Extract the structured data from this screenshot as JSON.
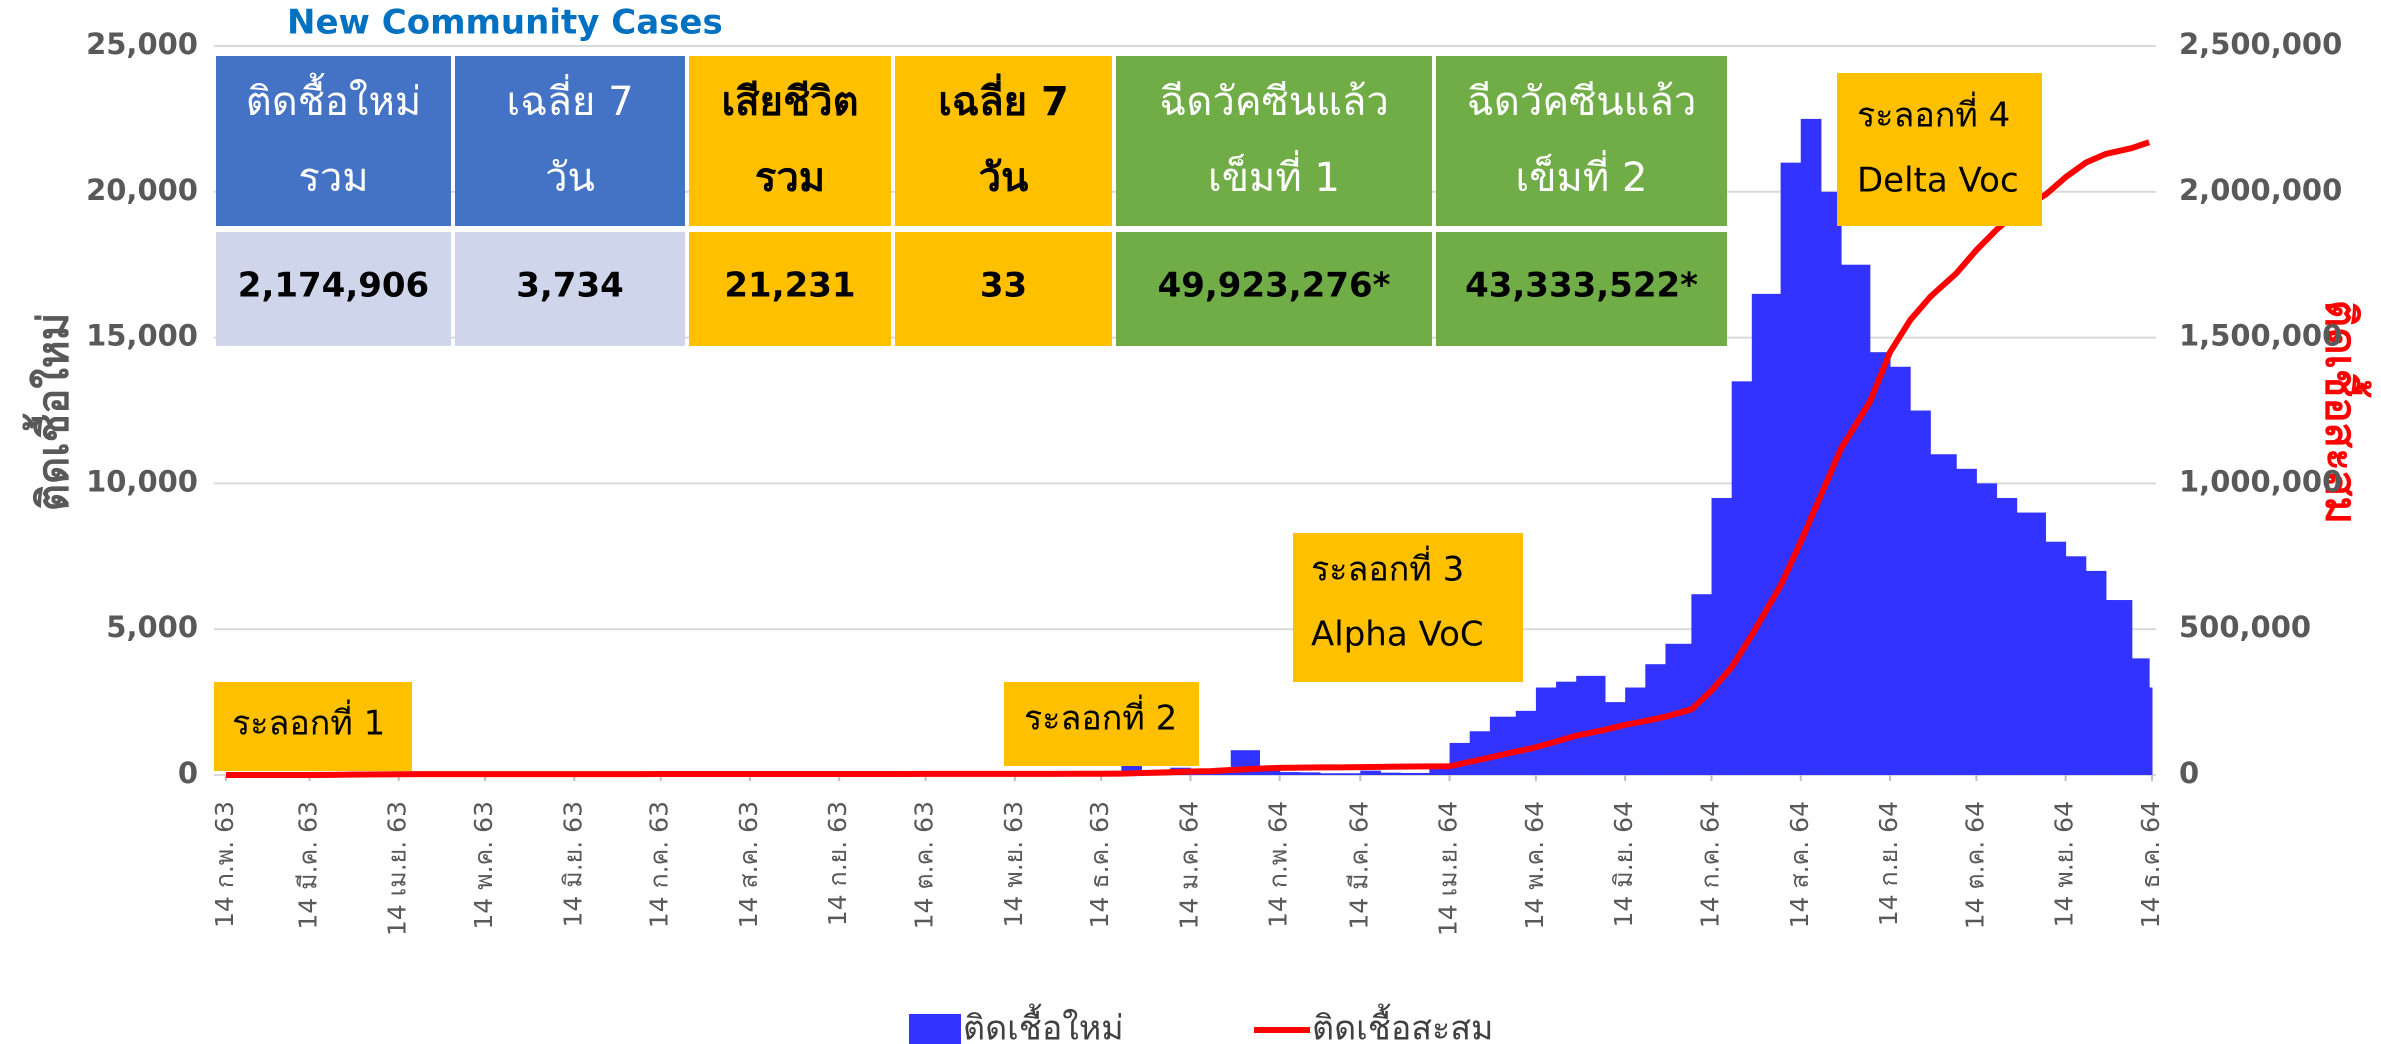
{
  "chart_data": {
    "type": "bar",
    "title": "New Community Cases",
    "y_label": "ติดเชื้อใหม่",
    "y2_label": "ติดเชื้อสะสม",
    "x": [
      "2020-02-14",
      "2020-02-21",
      "2020-02-28",
      "2020-03-07",
      "2020-03-14",
      "2020-03-21",
      "2020-03-28",
      "2020-04-07",
      "2020-04-14",
      "2020-04-21",
      "2020-04-28",
      "2020-05-07",
      "2020-05-14",
      "2020-05-21",
      "2020-05-28",
      "2020-06-07",
      "2020-06-14",
      "2020-06-21",
      "2020-06-28",
      "2020-07-07",
      "2020-07-14",
      "2020-07-21",
      "2020-07-28",
      "2020-08-07",
      "2020-08-14",
      "2020-08-21",
      "2020-08-28",
      "2020-09-07",
      "2020-09-14",
      "2020-09-21",
      "2020-09-28",
      "2020-10-07",
      "2020-10-14",
      "2020-10-21",
      "2020-10-28",
      "2020-11-07",
      "2020-11-14",
      "2020-11-21",
      "2020-11-28",
      "2020-12-07",
      "2020-12-14",
      "2020-12-21",
      "2020-12-28",
      "2021-01-07",
      "2021-01-14",
      "2021-01-21",
      "2021-01-28",
      "2021-02-07",
      "2021-02-14",
      "2021-02-21",
      "2021-02-28",
      "2021-03-07",
      "2021-03-14",
      "2021-03-21",
      "2021-03-28",
      "2021-04-07",
      "2021-04-14",
      "2021-04-21",
      "2021-04-28",
      "2021-05-07",
      "2021-05-14",
      "2021-05-21",
      "2021-05-28",
      "2021-06-07",
      "2021-06-14",
      "2021-06-21",
      "2021-06-28",
      "2021-07-07",
      "2021-07-14",
      "2021-07-21",
      "2021-07-28",
      "2021-08-07",
      "2021-08-14",
      "2021-08-21",
      "2021-08-28",
      "2021-09-07",
      "2021-09-14",
      "2021-09-21",
      "2021-09-28",
      "2021-10-07",
      "2021-10-14",
      "2021-10-21",
      "2021-10-28",
      "2021-11-07",
      "2021-11-14",
      "2021-11-21",
      "2021-11-28",
      "2021-12-07",
      "2021-12-13"
    ],
    "series": [
      {
        "name": "ติดเชื้อใหม่",
        "type": "bar",
        "color": "#3333ff",
        "values": [
          0,
          1,
          2,
          10,
          20,
          90,
          120,
          100,
          30,
          20,
          8,
          2,
          5,
          3,
          2,
          2,
          1,
          0,
          1,
          0,
          1,
          0,
          0,
          1,
          0,
          1,
          0,
          0,
          0,
          0,
          1,
          0,
          0,
          0,
          1,
          0,
          0,
          1,
          0,
          0,
          0,
          500,
          120,
          250,
          200,
          150,
          850,
          300,
          100,
          90,
          60,
          60,
          150,
          80,
          70,
          250,
          1100,
          1500,
          2000,
          2200,
          3000,
          3200,
          3400,
          2500,
          3000,
          3800,
          4500,
          6200,
          9500,
          13500,
          16500,
          21000,
          22500,
          20000,
          17500,
          14500,
          14000,
          12500,
          11000,
          10500,
          10000,
          9500,
          9000,
          8000,
          7500,
          7000,
          6000,
          4000,
          3000
        ]
      },
      {
        "name": "ติดเชื้อสะสม",
        "type": "line",
        "axis": "y2",
        "color": "#ff0000",
        "values": [
          35,
          35,
          40,
          50,
          80,
          400,
          1400,
          2200,
          2600,
          2800,
          2950,
          3000,
          3020,
          3040,
          3080,
          3100,
          3130,
          3160,
          3180,
          3200,
          3220,
          3250,
          3280,
          3340,
          3360,
          3390,
          3400,
          3450,
          3480,
          3500,
          3560,
          3600,
          3680,
          3730,
          3780,
          3830,
          3880,
          3940,
          4000,
          4100,
          4200,
          4800,
          6700,
          9600,
          12000,
          13300,
          17000,
          22000,
          24500,
          25500,
          26100,
          26300,
          26900,
          27800,
          28700,
          29600,
          30000,
          45000,
          60000,
          80000,
          95000,
          115000,
          135000,
          155000,
          172000,
          185000,
          200000,
          225000,
          290000,
          370000,
          480000,
          650000,
          800000,
          960000,
          1120000,
          1280000,
          1450000,
          1560000,
          1640000,
          1720000,
          1800000,
          1870000,
          1930000,
          1990000,
          2050000,
          2100000,
          2130000,
          2150000,
          2170000
        ]
      }
    ],
    "xlim": [
      "2020-02-14",
      "2021-12-14"
    ],
    "xticks": [
      {
        "value": "2020-02-14",
        "label": "14 ก.พ. 63"
      },
      {
        "value": "2020-03-14",
        "label": "14 มี.ค. 63"
      },
      {
        "value": "2020-04-14",
        "label": "14 เม.ย. 63"
      },
      {
        "value": "2020-05-14",
        "label": "14 พ.ค. 63"
      },
      {
        "value": "2020-06-14",
        "label": "14 มิ.ย. 63"
      },
      {
        "value": "2020-07-14",
        "label": "14 ก.ค. 63"
      },
      {
        "value": "2020-08-14",
        "label": "14 ส.ค. 63"
      },
      {
        "value": "2020-09-14",
        "label": "14 ก.ย. 63"
      },
      {
        "value": "2020-10-14",
        "label": "14 ต.ค. 63"
      },
      {
        "value": "2020-11-14",
        "label": "14 พ.ย. 63"
      },
      {
        "value": "2020-12-14",
        "label": "14 ธ.ค. 63"
      },
      {
        "value": "2021-01-14",
        "label": "14 ม.ค. 64"
      },
      {
        "value": "2021-02-14",
        "label": "14 ก.พ. 64"
      },
      {
        "value": "2021-03-14",
        "label": "14 มี.ค. 64"
      },
      {
        "value": "2021-04-14",
        "label": "14 เม.ย. 64"
      },
      {
        "value": "2021-05-14",
        "label": "14 พ.ค. 64"
      },
      {
        "value": "2021-06-14",
        "label": "14 มิ.ย. 64"
      },
      {
        "value": "2021-07-14",
        "label": "14 ก.ค. 64"
      },
      {
        "value": "2021-08-14",
        "label": "14 ส.ค. 64"
      },
      {
        "value": "2021-09-14",
        "label": "14 ก.ย. 64"
      },
      {
        "value": "2021-10-14",
        "label": "14 ต.ค. 64"
      },
      {
        "value": "2021-11-14",
        "label": "14 พ.ย. 64"
      },
      {
        "value": "2021-12-14",
        "label": "14 ธ.ค. 64"
      }
    ],
    "ylim": [
      0,
      25000
    ],
    "yticks": [
      0,
      {
        "value": 5000,
        "label": "5,000"
      },
      {
        "value": 10000,
        "label": "10,000"
      },
      {
        "value": 15000,
        "label": "15,000"
      },
      {
        "value": 20000,
        "label": "20,000"
      },
      {
        "value": 25000,
        "label": "25,000"
      }
    ],
    "y2lim": [
      0,
      2500000
    ],
    "y2ticks": [
      0,
      {
        "value": 500000,
        "label": "500,000"
      },
      {
        "value": 1000000,
        "label": "1,000,000"
      },
      {
        "value": 1500000,
        "label": "1,500,000"
      },
      {
        "value": 2000000,
        "label": "2,000,000"
      },
      {
        "value": 2500000,
        "label": "2,500,000"
      }
    ],
    "grid": true,
    "legend": "bottom",
    "table": {
      "headers": [
        [
          "ติดชื้อใหม่",
          "รวม"
        ],
        [
          "เฉลี่ย 7",
          "วัน"
        ],
        [
          "เสียชีวิต",
          "รวม"
        ],
        [
          "เฉลี่ย 7",
          "วัน"
        ],
        [
          "ฉีดวัคซีนแล้ว",
          "เข็มที่ 1"
        ],
        [
          "ฉีดวัคซีนแล้ว",
          "เข็มที่ 2"
        ]
      ],
      "header_colors": [
        "#4472c4",
        "#4472c4",
        "#ffc000",
        "#ffc000",
        "#70ad47",
        "#70ad47"
      ],
      "header_text_colors": [
        "#ffffff",
        "#ffffff",
        "#000000",
        "#000000",
        "#ffffff",
        "#ffffff"
      ],
      "values": [
        "2,174,906",
        "3,734",
        "21,231",
        "33",
        "49,923,276*",
        "43,333,522*"
      ],
      "value_colors": [
        "#cfd5ea",
        "#cfd5ea",
        "#ffc000",
        "#ffc000",
        "#70ad47",
        "#70ad47"
      ]
    },
    "annotations": [
      [
        "ระลอกที่ 1"
      ],
      [
        "ระลอกที่ 2"
      ],
      [
        "ระลอกที่ 3",
        "Alpha VoC"
      ],
      [
        "ระลอกที่ 4",
        "Delta Voc"
      ]
    ],
    "annotation_color": "#ffc000"
  }
}
